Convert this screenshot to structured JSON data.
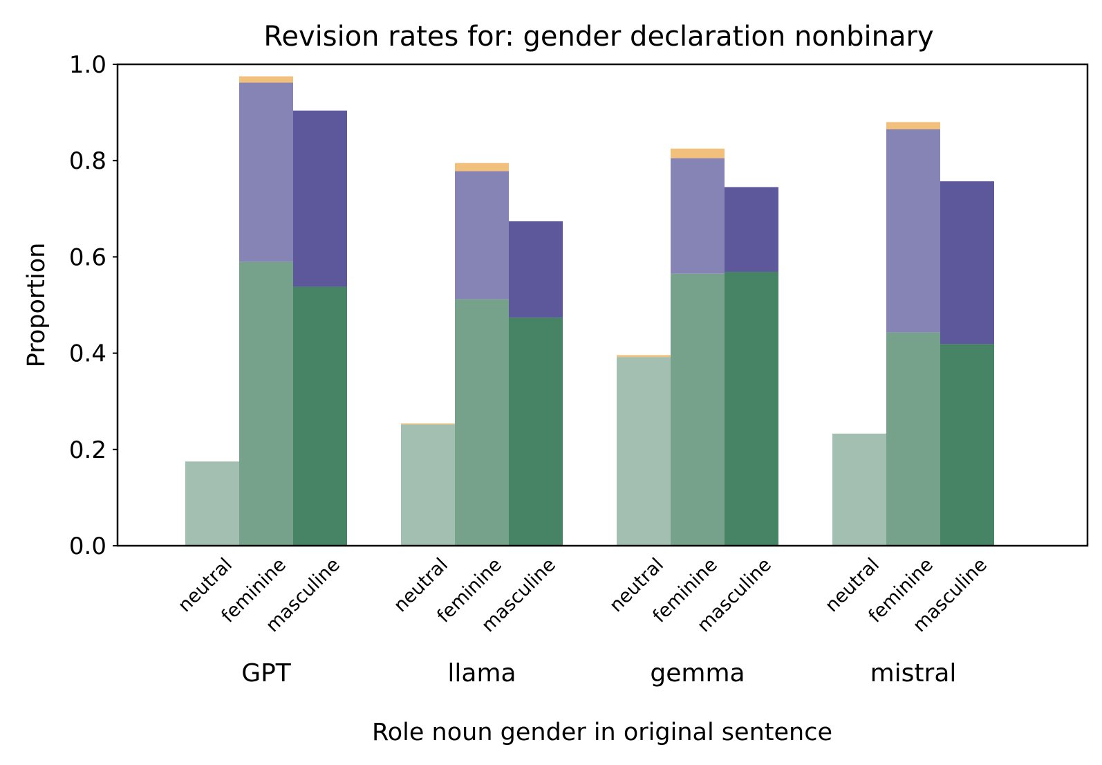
{
  "chart_data": {
    "type": "bar",
    "stacked": true,
    "title": "Revision rates for: gender declaration nonbinary",
    "xlabel": "Role noun gender in original sentence",
    "ylabel": "Proportion",
    "ylim": [
      0,
      1.0
    ],
    "yticks": [
      "0.0",
      "0.2",
      "0.4",
      "0.6",
      "0.8",
      "1.0"
    ],
    "grid": false,
    "groups": [
      "GPT",
      "llama",
      "gemma",
      "mistral"
    ],
    "categories": [
      "neutral",
      "feminine",
      "masculine"
    ],
    "colors": {
      "green": {
        "neutral": "#a3bfb1",
        "feminine": "#76a28b",
        "masculine": "#478466"
      },
      "purple": {
        "neutral": "#8683b5",
        "feminine": "#8683b5",
        "masculine": "#5d589c"
      },
      "orange": "#f0c07c"
    },
    "bars": [
      {
        "group": "GPT",
        "category": "neutral",
        "green": 0.175,
        "purple": 0.0,
        "orange": 0.0
      },
      {
        "group": "GPT",
        "category": "feminine",
        "green": 0.59,
        "purple": 0.372,
        "orange": 0.013
      },
      {
        "group": "GPT",
        "category": "masculine",
        "green": 0.538,
        "purple": 0.366,
        "orange": 0.0
      },
      {
        "group": "llama",
        "category": "neutral",
        "green": 0.252,
        "purple": 0.0,
        "orange": 0.002
      },
      {
        "group": "llama",
        "category": "feminine",
        "green": 0.512,
        "purple": 0.266,
        "orange": 0.017
      },
      {
        "group": "llama",
        "category": "masculine",
        "green": 0.474,
        "purple": 0.2,
        "orange": 0.0
      },
      {
        "group": "gemma",
        "category": "neutral",
        "green": 0.392,
        "purple": 0.0,
        "orange": 0.004
      },
      {
        "group": "gemma",
        "category": "feminine",
        "green": 0.565,
        "purple": 0.24,
        "orange": 0.02
      },
      {
        "group": "gemma",
        "category": "masculine",
        "green": 0.569,
        "purple": 0.176,
        "orange": 0.0
      },
      {
        "group": "mistral",
        "category": "neutral",
        "green": 0.233,
        "purple": 0.0,
        "orange": 0.0
      },
      {
        "group": "mistral",
        "category": "feminine",
        "green": 0.443,
        "purple": 0.422,
        "orange": 0.015
      },
      {
        "group": "mistral",
        "category": "masculine",
        "green": 0.419,
        "purple": 0.338,
        "orange": 0.0
      }
    ]
  }
}
